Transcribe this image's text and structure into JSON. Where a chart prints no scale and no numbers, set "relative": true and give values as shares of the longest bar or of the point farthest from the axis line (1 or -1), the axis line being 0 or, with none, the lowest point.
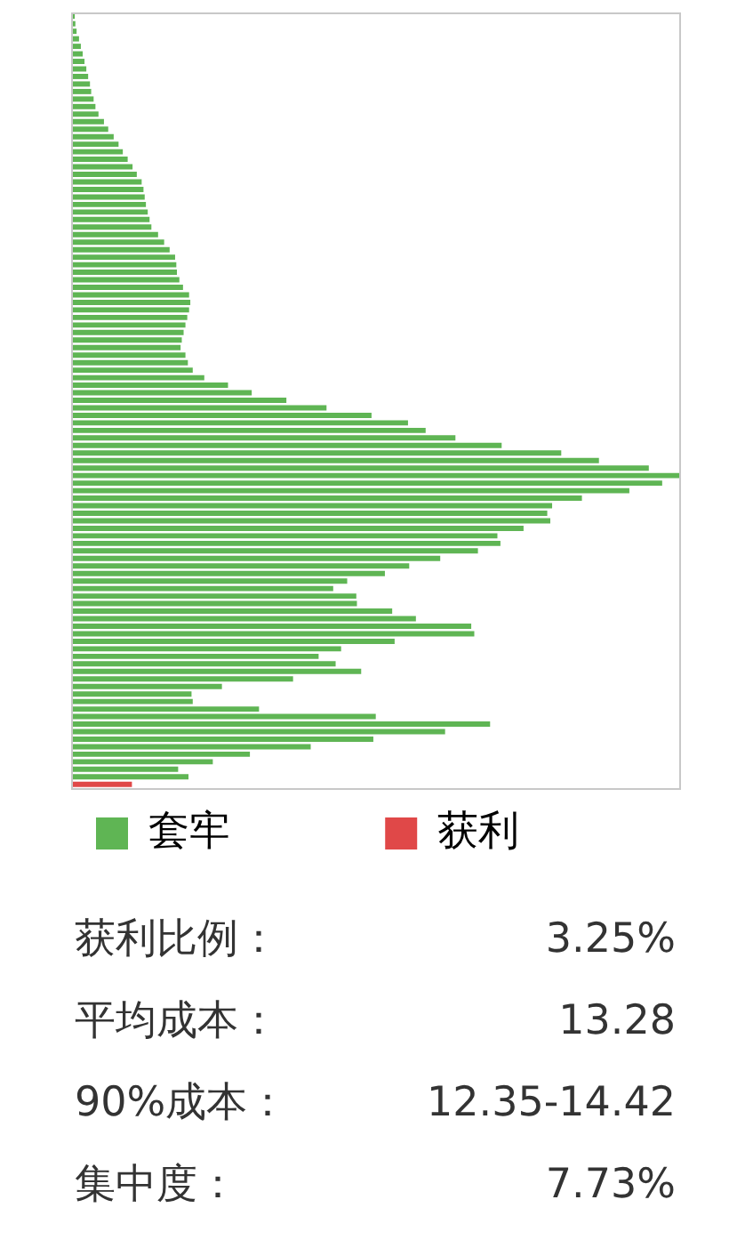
{
  "chart_data": {
    "type": "bar",
    "orientation": "horizontal",
    "stacked": true,
    "relative": true,
    "legend": "bottom",
    "categories": [
      null,
      null,
      null,
      null,
      null,
      null,
      null,
      null,
      null,
      null,
      null,
      null,
      null,
      null,
      null,
      null,
      null,
      null,
      null,
      null,
      null,
      null,
      null,
      null,
      null,
      null,
      null,
      null,
      null,
      null,
      null,
      null,
      null,
      null,
      null,
      null,
      null,
      null,
      null,
      null,
      null,
      null,
      null,
      null,
      null,
      null,
      null,
      null,
      null,
      null,
      null,
      null,
      null,
      null,
      null,
      null,
      null,
      null,
      null,
      null,
      null,
      null,
      null,
      null,
      null,
      null,
      null,
      null,
      null,
      null,
      null,
      null,
      null,
      null,
      null,
      null,
      null,
      null,
      null,
      null,
      null,
      null,
      null,
      null,
      null,
      null,
      null,
      null,
      null,
      null,
      null,
      null,
      null,
      null,
      null,
      null,
      null,
      null,
      null,
      null,
      null,
      null,
      null
    ],
    "series": [
      {
        "name": "套牢",
        "color": "#5fb554",
        "values": [
          0.006,
          0.007,
          0.009,
          0.013,
          0.016,
          0.019,
          0.022,
          0.025,
          0.028,
          0.031,
          0.033,
          0.037,
          0.04,
          0.045,
          0.054,
          0.061,
          0.07,
          0.078,
          0.085,
          0.093,
          0.101,
          0.108,
          0.116,
          0.119,
          0.121,
          0.123,
          0.126,
          0.129,
          0.132,
          0.143,
          0.153,
          0.162,
          0.171,
          0.173,
          0.174,
          0.178,
          0.184,
          0.194,
          0.196,
          0.194,
          0.191,
          0.188,
          0.185,
          0.182,
          0.18,
          0.188,
          0.192,
          0.2,
          0.219,
          0.258,
          0.297,
          0.354,
          0.42,
          0.494,
          0.554,
          0.583,
          0.632,
          0.708,
          0.806,
          0.868,
          0.95,
          1,
          0.972,
          0.918,
          0.84,
          0.791,
          0.783,
          0.788,
          0.744,
          0.701,
          0.706,
          0.669,
          0.607,
          0.556,
          0.516,
          0.454,
          0.431,
          0.469,
          0.47,
          0.528,
          0.567,
          0.658,
          0.663,
          0.532,
          0.444,
          0.407,
          0.435,
          0.477,
          0.365,
          0.248,
          0.198,
          0.2,
          0.309,
          0.501,
          0.689,
          0.615,
          0.497,
          0.394,
          0.294,
          0.233,
          0.176,
          0.193,
          0
        ]
      },
      {
        "name": "获利",
        "color": "#e04848",
        "values": [
          0,
          0,
          0,
          0,
          0,
          0,
          0,
          0,
          0,
          0,
          0,
          0,
          0,
          0,
          0,
          0,
          0,
          0,
          0,
          0,
          0,
          0,
          0,
          0,
          0,
          0,
          0,
          0,
          0,
          0,
          0,
          0,
          0,
          0,
          0,
          0,
          0,
          0,
          0,
          0,
          0,
          0,
          0,
          0,
          0,
          0,
          0,
          0,
          0,
          0,
          0,
          0,
          0,
          0,
          0,
          0,
          0,
          0,
          0,
          0,
          0,
          0,
          0,
          0,
          0,
          0,
          0,
          0,
          0,
          0,
          0,
          0,
          0,
          0,
          0,
          0,
          0,
          0,
          0,
          0,
          0,
          0,
          0,
          0,
          0,
          0,
          0,
          0,
          0,
          0,
          0,
          0,
          0,
          0,
          0,
          0,
          0,
          0,
          0,
          0,
          0,
          0,
          0.1
        ]
      }
    ],
    "annotations": [
      "获利比例：",
      "3.25%",
      "平均成本：",
      "13.28",
      "90%成本：",
      "12.35-14.42",
      "集中度：",
      "7.73%"
    ]
  }
}
